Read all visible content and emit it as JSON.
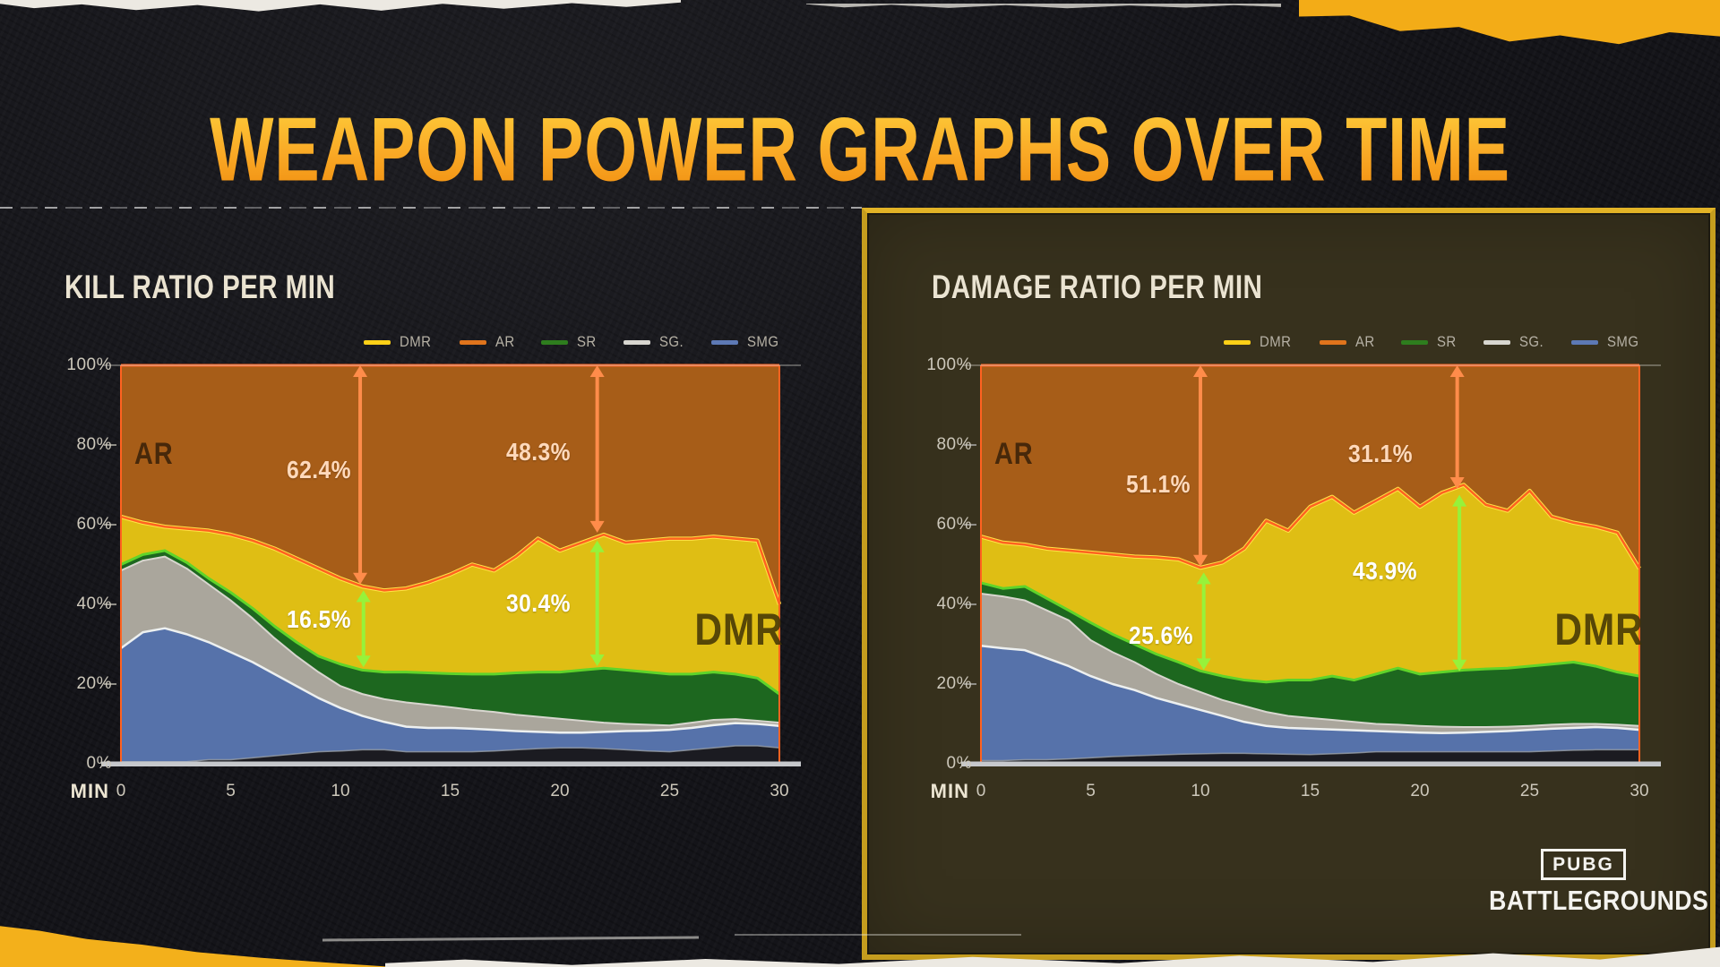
{
  "page": {
    "title": "WEAPON POWER GRAPHS OVER TIME"
  },
  "branding": {
    "pubg": "PUBG",
    "battlegrounds": "BATTLEGROUNDS"
  },
  "legend": {
    "items": [
      {
        "label": "DMR",
        "color": "#fdd017"
      },
      {
        "label": "AR",
        "color": "#e0741c"
      },
      {
        "label": "SR",
        "color": "#2e7d1e"
      },
      {
        "label": "SG.",
        "color": "#d8d6d0"
      },
      {
        "label": "SMG",
        "color": "#5d79b5"
      }
    ]
  },
  "axes": {
    "x_label": "MIN",
    "x_ticks": [
      0,
      5,
      10,
      15,
      20,
      25,
      30
    ],
    "y_ticks": [
      "0%",
      "20%",
      "40%",
      "60%",
      "80%",
      "100%"
    ]
  },
  "colors": {
    "background": "#141419",
    "panel_bg": "#37311d",
    "panel_border": "#c59d1e",
    "chart_title": "#eae3d1",
    "axis_text": "#cdc8bb",
    "legend_text": "#b6b1a5",
    "ar_fill": "#a75d18",
    "dmr_fill": "#dfbe14",
    "sr_fill": "#1d671f",
    "sg_fill": "#aaa69c",
    "smg_fill": "#5672aa",
    "other_fill": "#1b1b21",
    "ar_edge": "#ff6220",
    "dmr_edge": "#ffe545",
    "sr_edge": "#5fd42a",
    "sg_edge": "#d8d6cf",
    "smg_edge": "#edf0f0",
    "other_edge": "#9aa0a8",
    "arrow_orange": "#ff8c4a",
    "arrow_green": "#97f23a",
    "ann_text_orange": "#ffd9bb",
    "ann_text_green": "#ffffff",
    "axis_bar": "#c6c8cc",
    "gold_swash": "#f3ac17",
    "paper_white": "#ece9e2"
  },
  "chart_data": [
    {
      "id": "kill-ratio",
      "type": "area",
      "stacked": true,
      "normalized_pct": true,
      "title": "KILL RATIO PER MIN",
      "xlabel": "MIN",
      "ylim": [
        0,
        100
      ],
      "x_minutes": [
        0,
        1,
        2,
        3,
        4,
        5,
        6,
        7,
        8,
        9,
        10,
        11,
        12,
        13,
        14,
        15,
        16,
        17,
        18,
        19,
        20,
        21,
        22,
        23,
        24,
        25,
        26,
        27,
        28,
        29,
        30
      ],
      "series_order_bottom_to_top": [
        "other",
        "smg",
        "sg",
        "sr",
        "dmr",
        "ar"
      ],
      "cumulative_tops_pct": {
        "other": [
          0.5,
          0.5,
          0.5,
          0.5,
          1,
          1,
          1.5,
          2,
          2.5,
          3,
          3.2,
          3.5,
          3.5,
          3,
          3,
          3,
          3,
          3.2,
          3.5,
          3.8,
          4,
          4,
          3.8,
          3.5,
          3.2,
          3,
          3.5,
          4,
          4.5,
          4.5,
          4
        ],
        "smg": [
          29,
          33,
          34,
          32.5,
          30.5,
          28,
          25.5,
          22.5,
          19.5,
          16.5,
          14,
          12,
          10.5,
          9.3,
          9,
          9,
          8.8,
          8.5,
          8.2,
          8,
          7.8,
          7.8,
          8,
          8.2,
          8.3,
          8.5,
          9,
          9.7,
          10.2,
          10,
          9.5
        ],
        "sg": [
          48.5,
          51,
          52,
          49,
          45,
          41,
          36.5,
          31.5,
          27,
          23,
          19.5,
          17.5,
          16.2,
          15.4,
          14.8,
          14.2,
          13.5,
          13,
          12.3,
          11.8,
          11.3,
          10.8,
          10.3,
          10,
          9.8,
          9.6,
          10.3,
          11,
          11.2,
          10.8,
          10.3
        ],
        "sr": [
          50,
          52.5,
          53.5,
          50.5,
          46.5,
          43,
          39,
          34.5,
          30.5,
          27,
          25,
          23.5,
          23,
          23,
          22.8,
          22.6,
          22.5,
          22.5,
          22.8,
          23,
          23,
          23.5,
          24,
          23.5,
          23,
          22.5,
          22.5,
          23,
          22.5,
          21.5,
          17.5
        ],
        "dmr": [
          62,
          60.5,
          59.5,
          59,
          58.5,
          57.5,
          56,
          54,
          51.5,
          49,
          46.5,
          44.5,
          43.5,
          44,
          45.5,
          47.5,
          50,
          48.5,
          52,
          56.5,
          53.5,
          55.5,
          57.5,
          55.5,
          56,
          56.5,
          56.5,
          57,
          56.5,
          56,
          40
        ]
      },
      "area_labels": [
        {
          "text": "AR",
          "series": "ar"
        },
        {
          "text": "DMR",
          "series": "dmr"
        }
      ],
      "annotations": [
        {
          "group": "AR",
          "label": "62.4%",
          "x_min": 10.9,
          "from_pct": 100,
          "to_pct": 45,
          "style": "orange",
          "label_x_min": 9.0,
          "label_pct": 73.5
        },
        {
          "group": "AR",
          "label": "48.3%",
          "x_min": 21.7,
          "from_pct": 100,
          "to_pct": 58,
          "style": "orange",
          "label_x_min": 19.0,
          "label_pct": 78
        },
        {
          "group": "DMR",
          "label": "16.5%",
          "x_min": 11.05,
          "from_pct": 43.5,
          "to_pct": 24.2,
          "style": "green",
          "label_x_min": 9.0,
          "label_pct": 36
        },
        {
          "group": "DMR",
          "label": "30.4%",
          "x_min": 21.7,
          "from_pct": 56,
          "to_pct": 24.5,
          "style": "green",
          "label_x_min": 19.0,
          "label_pct": 40
        }
      ]
    },
    {
      "id": "damage-ratio",
      "type": "area",
      "stacked": true,
      "normalized_pct": true,
      "title": "DAMAGE RATIO PER MIN",
      "xlabel": "MIN",
      "ylim": [
        0,
        100
      ],
      "x_minutes": [
        0,
        1,
        2,
        3,
        4,
        5,
        6,
        7,
        8,
        9,
        10,
        11,
        12,
        13,
        14,
        15,
        16,
        17,
        18,
        19,
        20,
        21,
        22,
        23,
        24,
        25,
        26,
        27,
        28,
        29,
        30
      ],
      "series_order_bottom_to_top": [
        "other",
        "smg",
        "sg",
        "sr",
        "dmr",
        "ar"
      ],
      "cumulative_tops_pct": {
        "other": [
          0.8,
          0.8,
          1,
          1,
          1.2,
          1.5,
          1.8,
          2,
          2.2,
          2.4,
          2.5,
          2.6,
          2.6,
          2.5,
          2.4,
          2.3,
          2.5,
          2.7,
          3,
          3,
          3,
          3,
          3,
          3,
          3,
          3,
          3.2,
          3.4,
          3.5,
          3.5,
          3.5
        ],
        "smg": [
          29.6,
          29,
          28.5,
          26.5,
          24.5,
          22,
          20,
          18.5,
          16.5,
          15,
          13.5,
          12,
          10.5,
          9.5,
          9,
          8.8,
          8.6,
          8.4,
          8.2,
          8,
          7.8,
          7.7,
          7.8,
          8,
          8.2,
          8.5,
          8.8,
          9,
          9.2,
          9,
          8.5
        ],
        "sg": [
          42.7,
          42,
          41,
          38.5,
          36,
          31,
          28,
          25.5,
          22.5,
          20,
          18,
          16,
          14.5,
          13,
          12,
          11.5,
          11,
          10.5,
          10,
          9.8,
          9.5,
          9.3,
          9.2,
          9.2,
          9.3,
          9.5,
          9.8,
          10,
          10,
          9.8,
          9.5
        ],
        "sr": [
          45.4,
          44,
          44.5,
          41.5,
          38.5,
          35.4,
          32.5,
          30,
          27.5,
          25.5,
          23.3,
          22,
          21,
          20.5,
          21,
          21,
          22,
          21,
          22.5,
          24,
          22.5,
          23,
          23.5,
          23.8,
          24,
          24.5,
          25,
          25.5,
          24.5,
          23,
          22
        ],
        "dmr": [
          57,
          55.5,
          55,
          54,
          53.5,
          53,
          52.5,
          52,
          51.8,
          51.3,
          49.2,
          50.5,
          54,
          61,
          58.5,
          64.5,
          67,
          63,
          66,
          69,
          64.5,
          68,
          70,
          65,
          63.5,
          68.5,
          62,
          60.5,
          59.5,
          58,
          49
        ]
      },
      "area_labels": [
        {
          "text": "AR",
          "series": "ar"
        },
        {
          "text": "DMR",
          "series": "dmr"
        }
      ],
      "annotations": [
        {
          "group": "AR",
          "label": "51.1%",
          "x_min": 10.0,
          "from_pct": 100,
          "to_pct": 49.5,
          "style": "orange",
          "label_x_min": 8.1,
          "label_pct": 70
        },
        {
          "group": "AR",
          "label": "31.1%",
          "x_min": 21.7,
          "from_pct": 100,
          "to_pct": 69,
          "style": "orange",
          "label_x_min": 18.2,
          "label_pct": 77.5
        },
        {
          "group": "DMR",
          "label": "25.6%",
          "x_min": 10.15,
          "from_pct": 48,
          "to_pct": 23.5,
          "style": "green",
          "label_x_min": 8.2,
          "label_pct": 32
        },
        {
          "group": "DMR",
          "label": "43.9%",
          "x_min": 21.8,
          "from_pct": 67.5,
          "to_pct": 23.2,
          "style": "green",
          "label_x_min": 18.4,
          "label_pct": 48
        }
      ]
    }
  ]
}
